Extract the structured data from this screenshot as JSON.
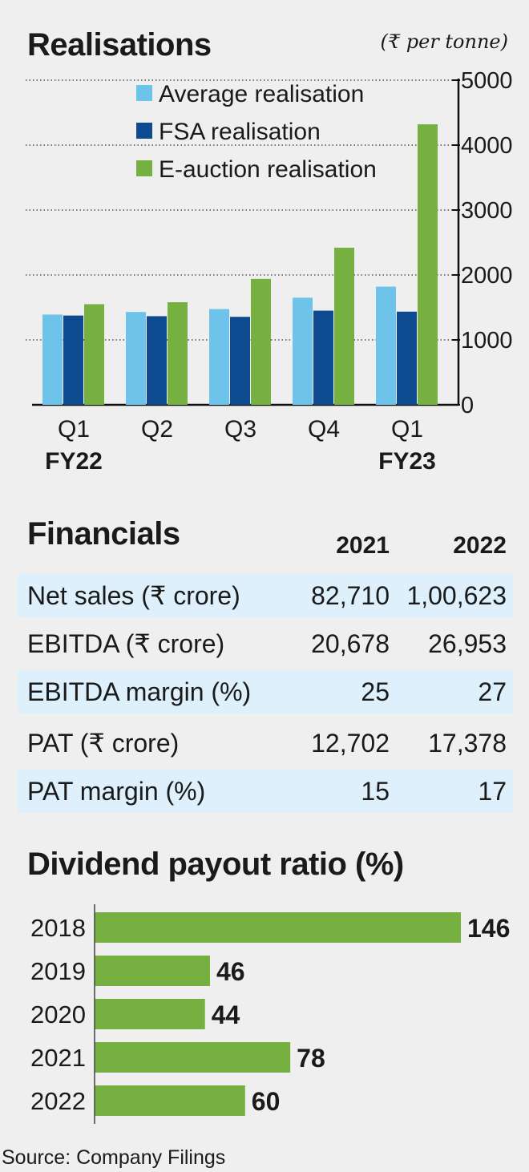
{
  "realisations": {
    "title": "Realisations",
    "unit": "(₹ per tonne)",
    "colors": {
      "average": "#6ec3ea",
      "fsa": "#0d4a8f",
      "eauction": "#76b041"
    },
    "chart_data": {
      "type": "bar",
      "categories": [
        "Q1",
        "Q2",
        "Q3",
        "Q4",
        "Q1"
      ],
      "category_groups": [
        "FY22",
        "",
        "",
        "",
        "FY23"
      ],
      "series": [
        {
          "name": "Average realisation",
          "values": [
            1390,
            1430,
            1475,
            1650,
            1820
          ]
        },
        {
          "name": "FSA realisation",
          "values": [
            1375,
            1365,
            1355,
            1450,
            1435
          ]
        },
        {
          "name": "E-auction realisation",
          "values": [
            1550,
            1580,
            1940,
            2420,
            4320
          ]
        }
      ],
      "ylim": [
        0,
        5000
      ],
      "yticks": [
        "0",
        "1000",
        "2000",
        "3000",
        "4000",
        "5000"
      ],
      "legend_position": "top-left",
      "grid": "dotted horizontal",
      "y_axis_side": "right"
    }
  },
  "financials": {
    "title": "Financials",
    "years": [
      "2021",
      "2022"
    ],
    "rows": [
      {
        "label": "Net sales (₹ crore)",
        "v2021": "82,710",
        "v2022": "1,00,623"
      },
      {
        "label": "EBITDA (₹ crore)",
        "v2021": "20,678",
        "v2022": "26,953"
      },
      {
        "label": "EBITDA margin (%)",
        "v2021": "25",
        "v2022": "27"
      },
      {
        "label": "PAT (₹ crore)",
        "v2021": "12,702",
        "v2022": "17,378"
      },
      {
        "label": "PAT margin (%)",
        "v2021": "15",
        "v2022": "17"
      }
    ]
  },
  "dividend": {
    "title": "Dividend payout ratio (%)",
    "color": "#76b041",
    "chart_data": {
      "type": "bar",
      "orientation": "horizontal",
      "categories": [
        "2018",
        "2019",
        "2020",
        "2021",
        "2022"
      ],
      "values": [
        146,
        46,
        44,
        78,
        60
      ],
      "data_labels": [
        "146",
        "46",
        "44",
        "78",
        "60"
      ]
    }
  },
  "source": "Source: Company Filings"
}
